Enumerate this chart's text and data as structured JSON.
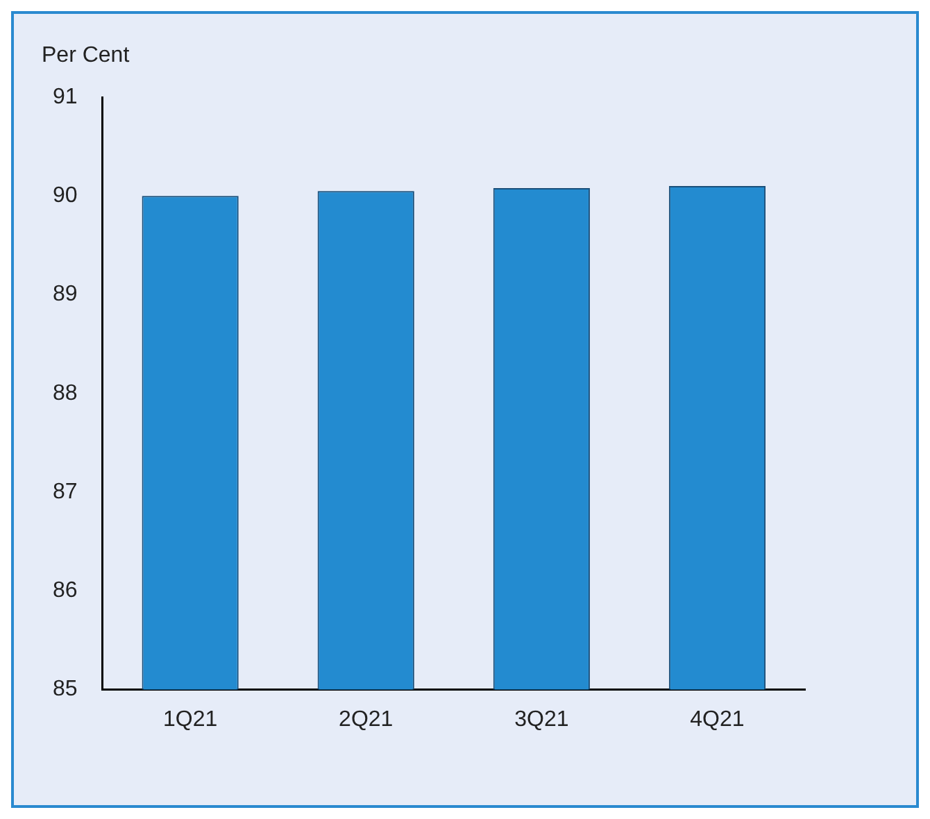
{
  "chart_data": {
    "type": "bar",
    "ylabel": "Per Cent",
    "categories": [
      "1Q21",
      "2Q21",
      "3Q21",
      "4Q21"
    ],
    "series": [
      {
        "color": "#238bd0",
        "values": [
          90.0,
          90.05,
          90.08,
          90.1
        ]
      }
    ],
    "ylim": [
      85,
      91
    ],
    "yticks": [
      85,
      86,
      87,
      88,
      89,
      90,
      91
    ],
    "grid": false,
    "legend": false
  }
}
